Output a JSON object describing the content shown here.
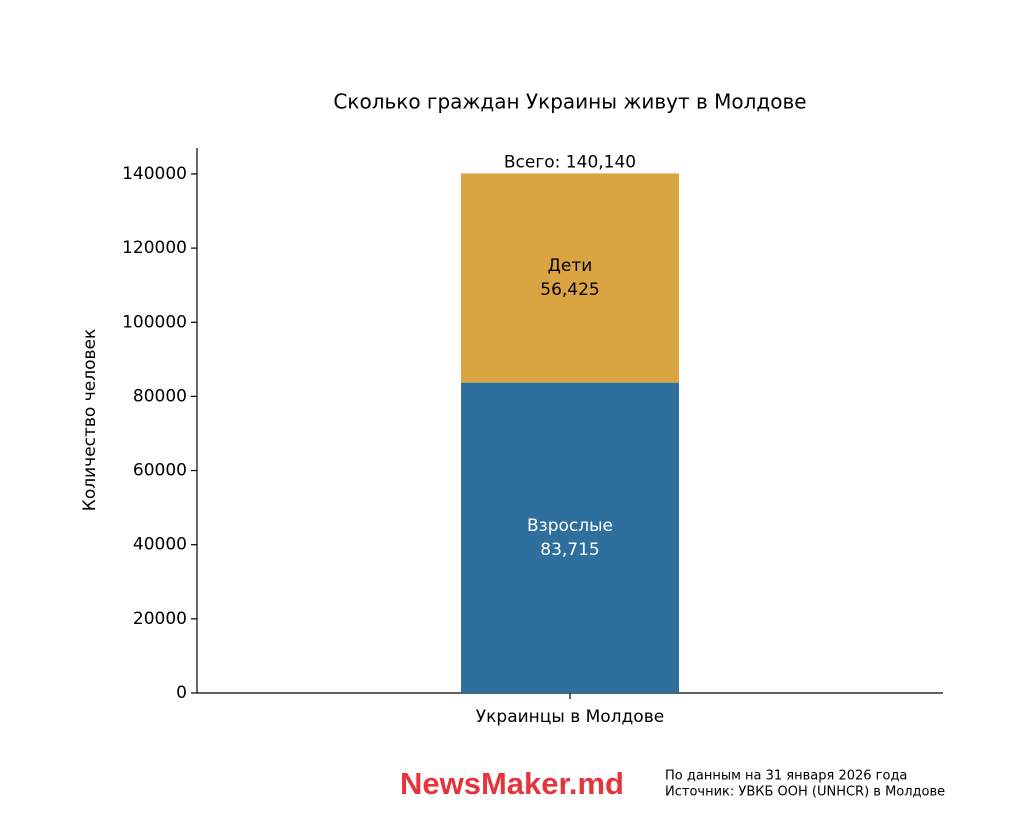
{
  "chart_data": {
    "type": "stacked_bar",
    "title": "Сколько граждан Украины живут в Молдове",
    "y_label": "Количество человек",
    "categories": [
      "Украинцы в Молдове"
    ],
    "series": [
      {
        "name": "Взрослые",
        "color": "#2e6f9e",
        "label_color": "#ffffff",
        "values": [
          83715
        ],
        "value_labels": [
          "83,715"
        ]
      },
      {
        "name": "Дети",
        "color": "#d9a441",
        "label_color": "#000000",
        "values": [
          56425
        ],
        "value_labels": [
          "56,425"
        ]
      }
    ],
    "annotation": "Всего: 140,140",
    "ylim": [
      0,
      147000
    ],
    "yticks": [
      0,
      20000,
      40000,
      60000,
      80000,
      100000,
      120000,
      140000
    ],
    "grid": false
  },
  "footer": {
    "brand": "NewsMaker.md",
    "notes": [
      "По данным на 31 января 2026 года",
      "Источник: УВКБ ООН (UNHCR) в Молдове"
    ]
  }
}
